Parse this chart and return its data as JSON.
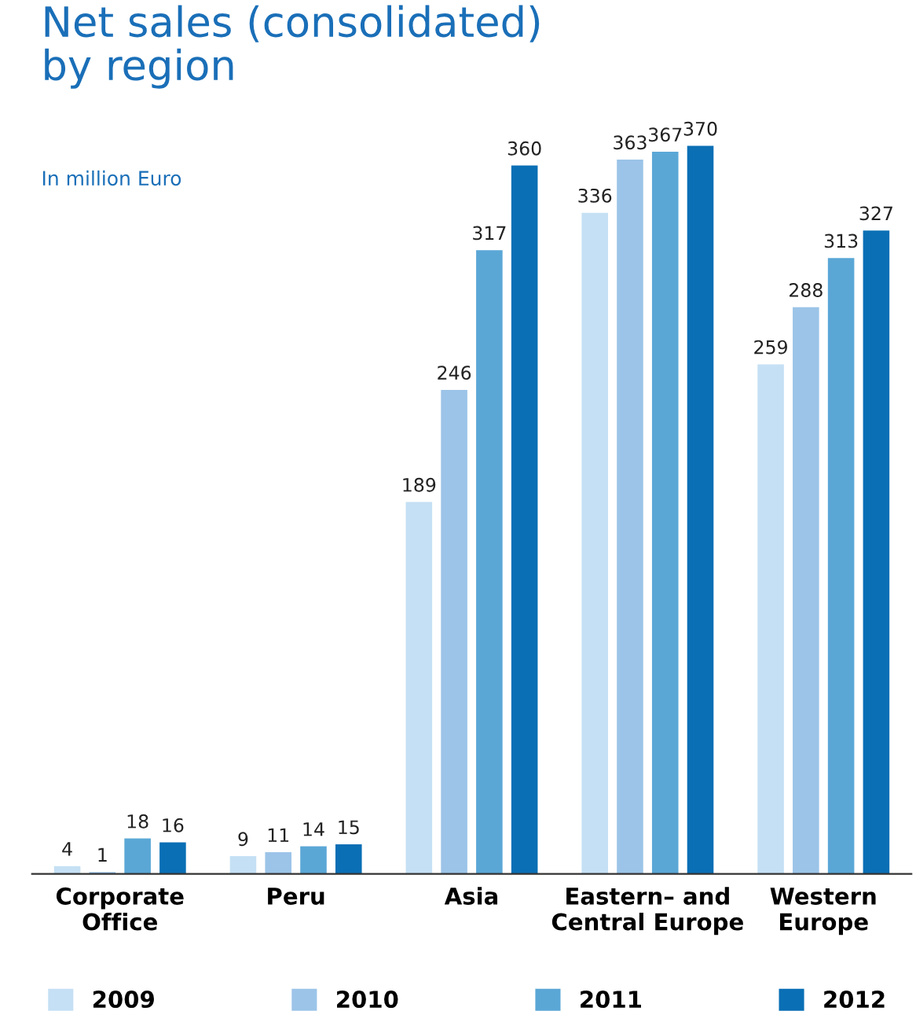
{
  "chart_data": {
    "type": "bar",
    "title": "Net sales (consolidated)\nby region",
    "subtitle": "In million Euro",
    "categories": [
      "Corporate\nOffice",
      "Peru",
      "Asia",
      "Eastern– and\nCentral Europe",
      "Western\nEurope"
    ],
    "series": [
      {
        "name": "2009",
        "color": "#c5e0f4",
        "values": [
          4,
          9,
          189,
          336,
          259
        ]
      },
      {
        "name": "2010",
        "color": "#9cc4e8",
        "values": [
          1,
          11,
          246,
          363,
          288
        ]
      },
      {
        "name": "2011",
        "color": "#5aa7d6",
        "values": [
          18,
          14,
          317,
          367,
          313
        ]
      },
      {
        "name": "2012",
        "color": "#0a6fb5",
        "values": [
          16,
          15,
          360,
          370,
          327
        ]
      }
    ],
    "data_labels": true,
    "legend": "bottom",
    "grid": false,
    "tick_labels": "x"
  }
}
